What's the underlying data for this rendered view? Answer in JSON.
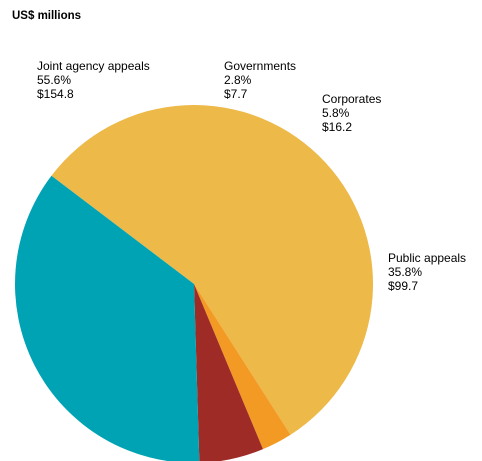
{
  "chart_data": {
    "type": "pie",
    "title": "US$ millions",
    "slices": [
      {
        "name": "Joint agency appeals",
        "percent_label": "55.6%",
        "value_label": "$154.8",
        "value": 154.8,
        "color": "#EDB948"
      },
      {
        "name": "Governments",
        "percent_label": "2.8%",
        "value_label": "$7.7",
        "value": 7.7,
        "color": "#F39A24"
      },
      {
        "name": "Corporates",
        "percent_label": "5.8%",
        "value_label": "$16.2",
        "value": 16.2,
        "color": "#9E2B25"
      },
      {
        "name": "Public appeals",
        "percent_label": "35.8%",
        "value_label": "$99.7",
        "value": 99.7,
        "color": "#00A3B4"
      }
    ],
    "legend": "none",
    "grid": false
  }
}
